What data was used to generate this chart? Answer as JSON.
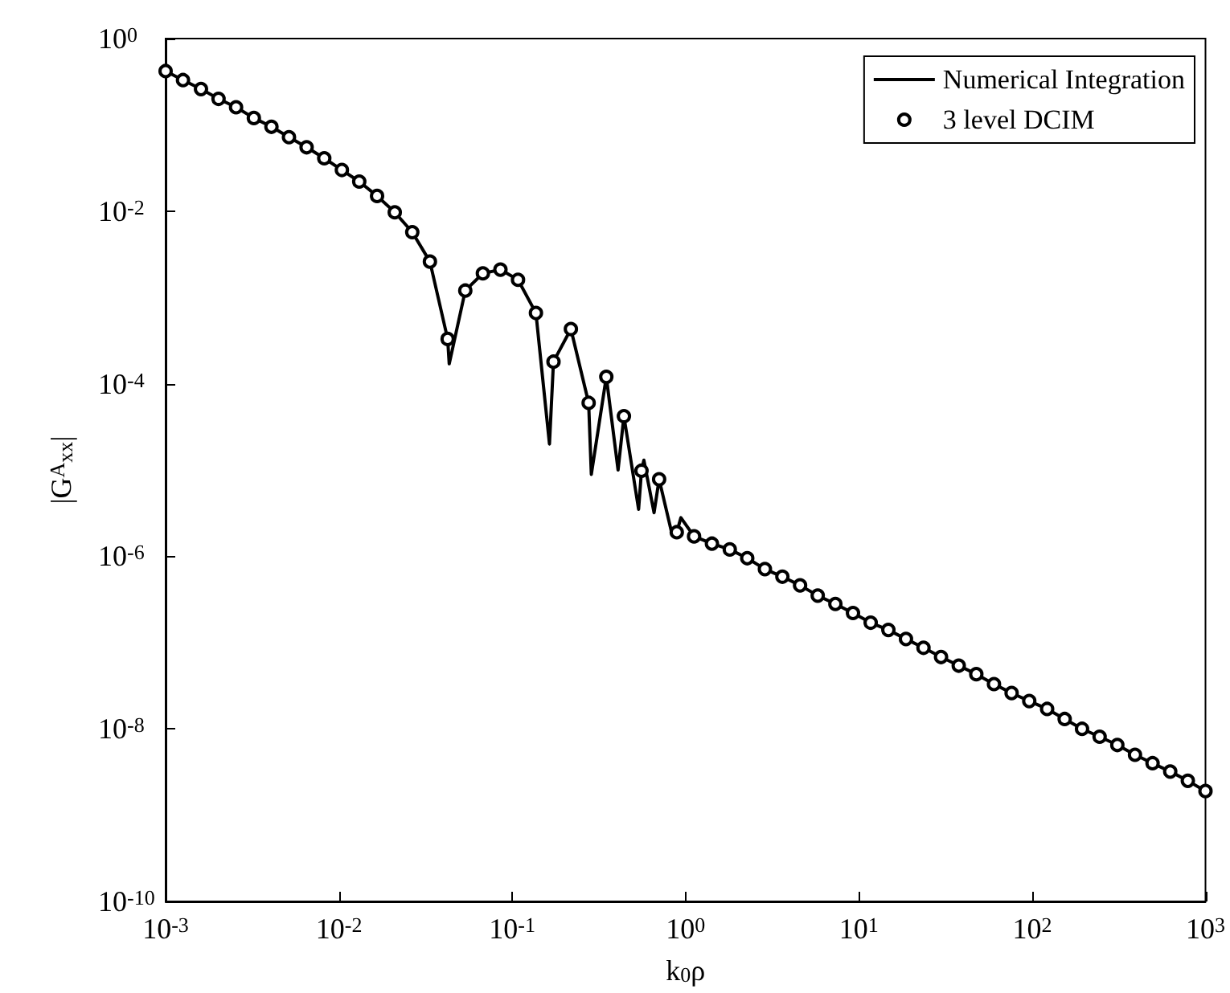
{
  "chart_data": {
    "type": "line",
    "xlabel": "k$_{0}$ρ",
    "ylabel": "|G$^{A}$$_{xx}$|",
    "log": "xy",
    "xlim": [
      0.001,
      1000
    ],
    "ylim": [
      1e-10,
      1
    ],
    "xticks": [
      {
        "value": 0.001,
        "label": "10$^{-3}$"
      },
      {
        "value": 0.01,
        "label": "10$^{-2}$"
      },
      {
        "value": 0.1,
        "label": "10$^{-1}$"
      },
      {
        "value": 1,
        "label": "10$^{0}$"
      },
      {
        "value": 10,
        "label": "10$^{1}$"
      },
      {
        "value": 100,
        "label": "10$^{2}$"
      },
      {
        "value": 1000,
        "label": "10$^{3}$"
      }
    ],
    "yticks": [
      {
        "value": 1e-10,
        "label": "10$^{-10}$"
      },
      {
        "value": 1e-08,
        "label": "10$^{-8}$"
      },
      {
        "value": 1e-06,
        "label": "10$^{-6}$"
      },
      {
        "value": 0.0001,
        "label": "10$^{-4}$"
      },
      {
        "value": 0.01,
        "label": "10$^{-2}$"
      },
      {
        "value": 1,
        "label": "10$^{0}$"
      }
    ],
    "grid": false,
    "legend": "top right",
    "series": [
      {
        "name": "Numerical Integration",
        "type": "line",
        "color": "#000000",
        "marker": "none",
        "line_style": "solid",
        "x": [
          0.001,
          0.00126,
          0.0016,
          0.00202,
          0.00255,
          0.00323,
          0.00408,
          0.00515,
          0.00651,
          0.00823,
          0.0104,
          0.0131,
          0.0166,
          0.021,
          0.0265,
          0.0335,
          0.0424,
          0.0433,
          0.0536,
          0.0677,
          0.0855,
          0.108,
          0.137,
          0.164,
          0.173,
          0.218,
          0.276,
          0.286,
          0.349,
          0.408,
          0.441,
          0.536,
          0.557,
          0.575,
          0.658,
          0.704,
          0.836,
          0.89,
          0.94,
          1.12,
          1.42,
          1.8,
          2.27,
          2.87,
          3.62,
          4.58,
          5.79,
          7.32,
          9.25,
          11.7,
          14.8,
          18.7,
          23.6,
          29.8,
          37.7,
          47.6,
          60.2,
          76.1,
          96.2,
          122,
          154,
          194,
          245,
          310,
          392,
          495,
          626,
          791,
          1000
        ],
        "values": [
          0.42,
          0.33,
          0.26,
          0.2,
          0.16,
          0.12,
          0.095,
          0.072,
          0.055,
          0.041,
          0.03,
          0.022,
          0.015,
          0.0097,
          0.0057,
          0.0026,
          0.00033,
          0.00017,
          0.0012,
          0.0019,
          0.0021,
          0.0016,
          0.00066,
          2e-05,
          0.00018,
          0.00043,
          6e-05,
          8.9e-06,
          0.00012,
          1e-05,
          4.2e-05,
          3.5e-06,
          9.8e-06,
          1.3e-05,
          3.2e-06,
          7.8e-06,
          1.8e-06,
          1.9e-06,
          2.8e-06,
          1.7e-06,
          1.4e-06,
          1.2e-06,
          9.5e-07,
          7.1e-07,
          5.8e-07,
          4.6e-07,
          3.5e-07,
          2.8e-07,
          2.2e-07,
          1.7e-07,
          1.4e-07,
          1.1e-07,
          8.7e-08,
          6.8e-08,
          5.4e-08,
          4.3e-08,
          3.3e-08,
          2.6e-08,
          2.1e-08,
          1.7e-08,
          1.3e-08,
          1e-08,
          8.1e-09,
          6.5e-09,
          5e-09,
          4e-09,
          3.2e-09,
          2.5e-09,
          1.9e-09
        ]
      },
      {
        "name": "3 level DCIM",
        "type": "scatter",
        "color": "#000000",
        "marker": "circle",
        "x": [
          0.001,
          0.00126,
          0.0016,
          0.00202,
          0.00255,
          0.00323,
          0.00408,
          0.00515,
          0.00651,
          0.00823,
          0.0104,
          0.0131,
          0.0166,
          0.021,
          0.0265,
          0.0335,
          0.0424,
          0.0536,
          0.0677,
          0.0855,
          0.108,
          0.137,
          0.173,
          0.218,
          0.276,
          0.349,
          0.441,
          0.557,
          0.704,
          0.89,
          1.12,
          1.42,
          1.8,
          2.27,
          2.87,
          3.62,
          4.58,
          5.79,
          7.32,
          9.25,
          11.7,
          14.8,
          18.7,
          23.6,
          29.8,
          37.7,
          47.6,
          60.2,
          76.1,
          96.2,
          122,
          154,
          194,
          245,
          310,
          392,
          495,
          626,
          791,
          1000
        ],
        "values": [
          0.42,
          0.33,
          0.26,
          0.2,
          0.16,
          0.12,
          0.095,
          0.072,
          0.055,
          0.041,
          0.03,
          0.022,
          0.015,
          0.0097,
          0.0057,
          0.0026,
          0.00033,
          0.0012,
          0.0019,
          0.0021,
          0.0016,
          0.00066,
          0.00018,
          0.00043,
          6e-05,
          0.00012,
          4.2e-05,
          9.8e-06,
          7.8e-06,
          1.9e-06,
          1.7e-06,
          1.4e-06,
          1.2e-06,
          9.5e-07,
          7.1e-07,
          5.8e-07,
          4.6e-07,
          3.5e-07,
          2.8e-07,
          2.2e-07,
          1.7e-07,
          1.4e-07,
          1.1e-07,
          8.7e-08,
          6.8e-08,
          5.4e-08,
          4.3e-08,
          3.3e-08,
          2.6e-08,
          2.1e-08,
          1.7e-08,
          1.3e-08,
          1e-08,
          8.1e-09,
          6.5e-09,
          5e-09,
          4e-09,
          3.2e-09,
          2.5e-09,
          1.9e-09
        ]
      }
    ]
  }
}
